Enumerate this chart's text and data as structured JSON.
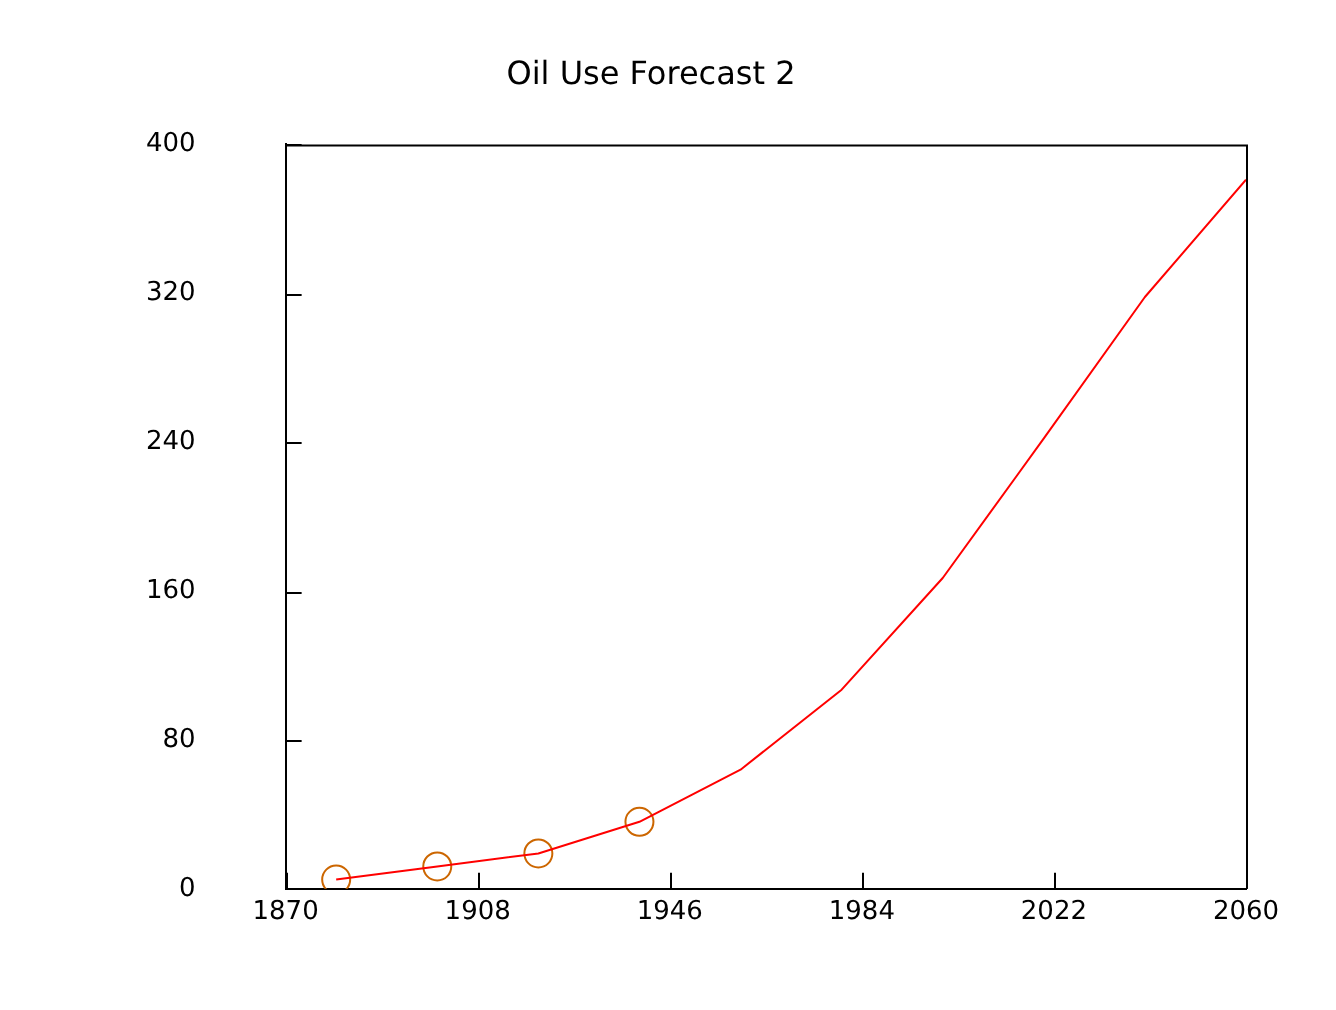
{
  "chart_data": {
    "type": "line",
    "title": "Oil Use Forecast 2",
    "x": [
      1880,
      1900,
      1920,
      1940,
      1960,
      1980,
      2000,
      2020,
      2040,
      2060
    ],
    "series": [
      {
        "type": "line",
        "color": "#ff0000",
        "marker": "none",
        "values": [
          5,
          12,
          19,
          36,
          64,
          107,
          167,
          242,
          318,
          381
        ]
      },
      {
        "type": "scatter",
        "color": "#cc6600",
        "marker": "circle",
        "x": [
          1880,
          1900,
          1920,
          1940
        ],
        "values": [
          5,
          12,
          19,
          36
        ]
      }
    ],
    "xlim": [
      1870,
      2060
    ],
    "xticks": [
      1870,
      1908,
      1946,
      1984,
      2022,
      2060
    ],
    "ylim": [
      0,
      400
    ],
    "yticks": [
      0,
      80,
      160,
      240,
      320,
      400
    ],
    "grid": false,
    "legend": false
  }
}
